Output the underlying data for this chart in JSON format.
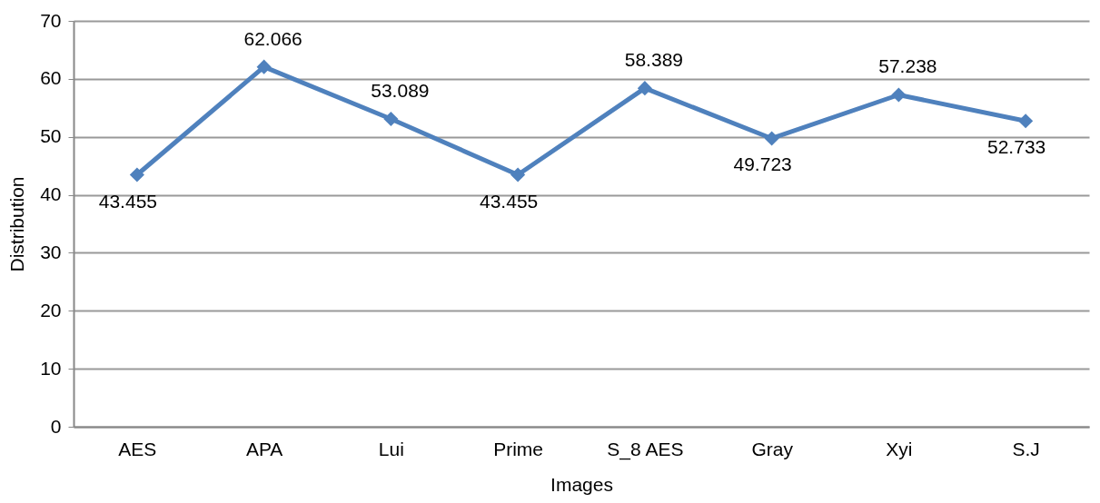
{
  "chart_data": {
    "type": "line",
    "xlabel": "Images",
    "ylabel": "Distribution",
    "categories": [
      "AES",
      "APA",
      "Lui",
      "Prime",
      "S_8 AES",
      "Gray",
      "Xyi",
      "S.J"
    ],
    "series": [
      {
        "color": "#4f81bd",
        "values": [
          43.455,
          62.066,
          53.089,
          43.455,
          58.389,
          49.723,
          57.238,
          52.733
        ]
      }
    ],
    "ylim": [
      0,
      70
    ],
    "yticks": [
      0,
      10,
      20,
      30,
      40,
      50,
      60,
      70
    ],
    "grid": "y",
    "marker": "diamond",
    "line_style": "solid",
    "data_labels": true
  }
}
